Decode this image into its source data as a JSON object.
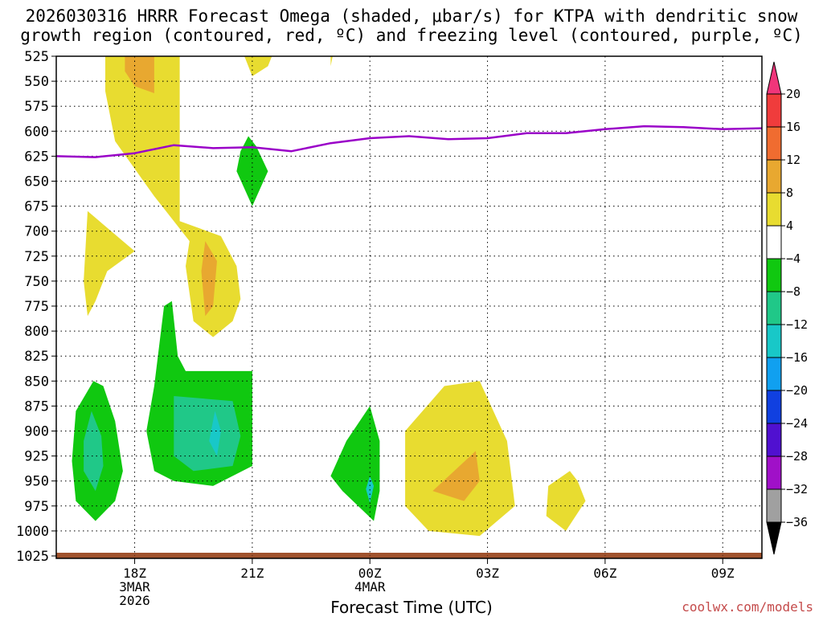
{
  "chart_data": {
    "type": "heatmap",
    "title_line1": "2026030316 HRRR Forecast Omega (shaded, μbar/s) for KTPA with dendritic snow",
    "title_line2": "growth region (contoured, red, ºC) and freezing level (contoured, purple, ºC)",
    "xlabel": "Forecast Time (UTC)",
    "credit": "coolwx.com/models",
    "x_range_hours_from_18z": [
      -2,
      16
    ],
    "y_range_mb": [
      525,
      1025
    ],
    "y_ticks": [
      "525",
      "550",
      "575",
      "600",
      "625",
      "650",
      "675",
      "700",
      "725",
      "750",
      "775",
      "800",
      "825",
      "850",
      "875",
      "900",
      "925",
      "950",
      "975",
      "1000",
      "1025"
    ],
    "x_ticks": [
      {
        "h": 0,
        "label": "18Z",
        "sub1": "3MAR",
        "sub2": "2026"
      },
      {
        "h": 3,
        "label": "21Z",
        "sub1": "",
        "sub2": ""
      },
      {
        "h": 6,
        "label": "00Z",
        "sub1": "4MAR",
        "sub2": ""
      },
      {
        "h": 9,
        "label": "03Z",
        "sub1": "",
        "sub2": ""
      },
      {
        "h": 12,
        "label": "06Z",
        "sub1": "",
        "sub2": ""
      },
      {
        "h": 15,
        "label": "09Z",
        "sub1": "",
        "sub2": ""
      }
    ],
    "colorbar": {
      "labels": [
        "20",
        "16",
        "12",
        "8",
        "4",
        "-4",
        "-8",
        "-12",
        "-16",
        "-20",
        "-24",
        "-28",
        "-32",
        "-36"
      ],
      "colors": [
        "#f0357a",
        "#f03c3c",
        "#f06c30",
        "#e8a830",
        "#e8dc30",
        "#ffffff",
        "#10c810",
        "#20c888",
        "#18c8c8",
        "#10a0f0",
        "#1040e0",
        "#5010d0",
        "#a010c8",
        "#a0a0a0",
        "#000000"
      ]
    },
    "freezing_level": {
      "color": "#9a00c8",
      "points": [
        [
          -2,
          625
        ],
        [
          -1,
          626
        ],
        [
          0,
          622
        ],
        [
          1,
          614
        ],
        [
          2,
          617
        ],
        [
          3,
          616
        ],
        [
          4,
          620
        ],
        [
          5,
          612
        ],
        [
          6,
          607
        ],
        [
          7,
          605
        ],
        [
          8,
          608
        ],
        [
          9,
          607
        ],
        [
          10,
          602
        ],
        [
          11,
          602
        ],
        [
          12,
          598
        ],
        [
          13,
          595
        ],
        [
          14,
          596
        ],
        [
          15,
          598
        ],
        [
          16,
          597
        ]
      ]
    },
    "omega_regions": [
      {
        "color": "#e8dc30",
        "label": "4 to 8",
        "points": [
          [
            -0.75,
            525
          ],
          [
            1.15,
            525
          ],
          [
            1.15,
            690
          ],
          [
            2.2,
            705
          ],
          [
            2.6,
            735
          ],
          [
            2.7,
            768
          ],
          [
            2.5,
            790
          ],
          [
            2,
            806
          ],
          [
            1.5,
            790
          ],
          [
            1.3,
            735
          ],
          [
            1.4,
            710
          ],
          [
            0.5,
            665
          ],
          [
            -0.5,
            610
          ],
          [
            -0.75,
            560
          ]
        ]
      },
      {
        "color": "#e8dc30",
        "label": "4 to 8",
        "points": [
          [
            2.8,
            525
          ],
          [
            3.5,
            525
          ],
          [
            3.4,
            535
          ],
          [
            3.0,
            545
          ]
        ]
      },
      {
        "color": "#e8dc30",
        "label": "4 to 8",
        "points": [
          [
            5.0,
            525
          ],
          [
            5.05,
            525
          ],
          [
            5.0,
            535
          ]
        ]
      },
      {
        "color": "#e8a830",
        "label": "8 to 12",
        "points": [
          [
            -0.25,
            525
          ],
          [
            0.5,
            525
          ],
          [
            0.5,
            562
          ],
          [
            0.0,
            555
          ],
          [
            -0.25,
            540
          ]
        ]
      },
      {
        "color": "#e8a830",
        "label": "8 to 12",
        "points": [
          [
            1.8,
            710
          ],
          [
            2.1,
            730
          ],
          [
            2.0,
            775
          ],
          [
            1.8,
            785
          ],
          [
            1.7,
            740
          ]
        ]
      },
      {
        "color": "#e8dc30",
        "label": "4 to 8",
        "points": [
          [
            -1.2,
            680
          ],
          [
            -0.9,
            690
          ],
          [
            -0.0,
            720
          ],
          [
            -0.7,
            740
          ],
          [
            -1.0,
            770
          ],
          [
            -1.2,
            785
          ],
          [
            -1.3,
            750
          ]
        ]
      },
      {
        "color": "#10c810",
        "label": "-8 to -4",
        "points": [
          [
            -1.05,
            850
          ],
          [
            -0.8,
            855
          ],
          [
            -0.5,
            890
          ],
          [
            -0.3,
            940
          ],
          [
            -0.5,
            970
          ],
          [
            -1.0,
            990
          ],
          [
            -1.5,
            970
          ],
          [
            -1.6,
            930
          ],
          [
            -1.5,
            880
          ]
        ]
      },
      {
        "color": "#20c888",
        "label": "-12 to -8",
        "points": [
          [
            -1.1,
            880
          ],
          [
            -0.85,
            905
          ],
          [
            -0.8,
            935
          ],
          [
            -1.0,
            960
          ],
          [
            -1.3,
            940
          ],
          [
            -1.3,
            910
          ]
        ]
      },
      {
        "color": "#10c810",
        "label": "-8 to -4",
        "points": [
          [
            0.75,
            775
          ],
          [
            0.95,
            770
          ],
          [
            1.1,
            825
          ],
          [
            1.3,
            840
          ],
          [
            3.0,
            840
          ],
          [
            3.0,
            935
          ],
          [
            2.0,
            955
          ],
          [
            1.0,
            950
          ],
          [
            0.5,
            940
          ],
          [
            0.3,
            900
          ],
          [
            0.5,
            855
          ]
        ]
      },
      {
        "color": "#20c888",
        "label": "-12 to -8",
        "points": [
          [
            1.0,
            865
          ],
          [
            2.5,
            870
          ],
          [
            2.7,
            905
          ],
          [
            2.5,
            935
          ],
          [
            1.5,
            940
          ],
          [
            1.0,
            925
          ]
        ]
      },
      {
        "color": "#18c8c8",
        "label": "-16 to -12",
        "points": [
          [
            2.05,
            880
          ],
          [
            2.2,
            900
          ],
          [
            2.1,
            925
          ],
          [
            1.9,
            910
          ]
        ]
      },
      {
        "color": "#10c810",
        "label": "-8 to -4",
        "points": [
          [
            6.0,
            875
          ],
          [
            6.25,
            910
          ],
          [
            6.25,
            960
          ],
          [
            6.1,
            990
          ],
          [
            5.3,
            960
          ],
          [
            5.0,
            945
          ],
          [
            5.4,
            910
          ]
        ]
      },
      {
        "color": "#18c8c8",
        "label": "-16 to -12",
        "points": [
          [
            6.0,
            945
          ],
          [
            6.1,
            955
          ],
          [
            6.0,
            972
          ],
          [
            5.9,
            958
          ]
        ]
      },
      {
        "color": "#10c810",
        "label": "green blob",
        "points": [
          [
            2.9,
            605
          ],
          [
            3.1,
            615
          ],
          [
            3.4,
            640
          ],
          [
            3.0,
            675
          ],
          [
            2.6,
            640
          ],
          [
            2.7,
            620
          ]
        ]
      },
      {
        "color": "#e8dc30",
        "label": "4 to 8",
        "points": [
          [
            7.9,
            855
          ],
          [
            8.8,
            850
          ],
          [
            9.5,
            910
          ],
          [
            9.7,
            975
          ],
          [
            8.8,
            1005
          ],
          [
            7.5,
            1000
          ],
          [
            6.9,
            975
          ],
          [
            6.9,
            900
          ]
        ]
      },
      {
        "color": "#e8a830",
        "label": "8 to 12",
        "points": [
          [
            8.7,
            920
          ],
          [
            8.8,
            950
          ],
          [
            8.4,
            970
          ],
          [
            7.6,
            960
          ]
        ]
      },
      {
        "color": "#e8dc30",
        "label": "4 to 8",
        "points": [
          [
            11.1,
            940
          ],
          [
            11.3,
            950
          ],
          [
            11.5,
            970
          ],
          [
            11.0,
            1000
          ],
          [
            10.5,
            985
          ],
          [
            10.55,
            955
          ]
        ]
      }
    ]
  }
}
